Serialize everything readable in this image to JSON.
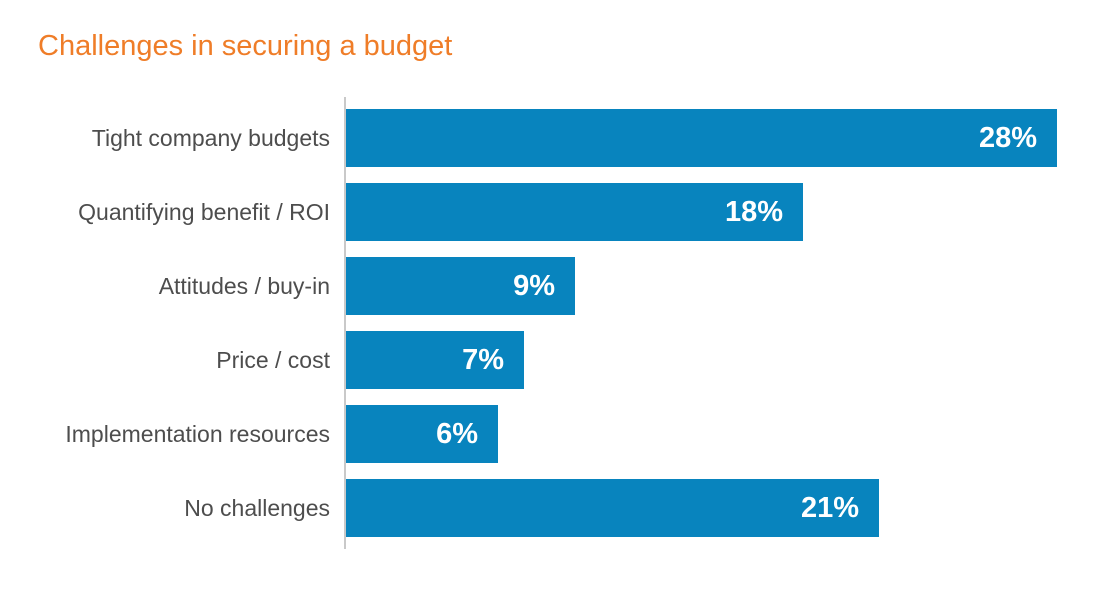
{
  "title": "Challenges in securing a budget",
  "colors": {
    "title_color": "#ef7d28",
    "bar_color": "#0884be",
    "label_color": "#4d4d4d",
    "axis_color": "#c9c9c9",
    "value_text_color": "#ffffff",
    "background": "#ffffff"
  },
  "chart_data": {
    "type": "bar",
    "orientation": "horizontal",
    "title": "Challenges in securing a budget",
    "categories": [
      "Tight company budgets",
      "Quantifying benefit / ROI",
      "Attitudes / buy-in",
      "Price / cost",
      "Implementation resources",
      "No challenges"
    ],
    "values": [
      28,
      18,
      9,
      7,
      6,
      21
    ],
    "value_labels": [
      "28%",
      "18%",
      "9%",
      "7%",
      "6%",
      "21%"
    ],
    "unit": "%",
    "xlabel": "",
    "ylabel": "",
    "xlim": [
      0,
      28
    ],
    "grid": false,
    "legend": false,
    "value_label_position": "inside-end"
  }
}
